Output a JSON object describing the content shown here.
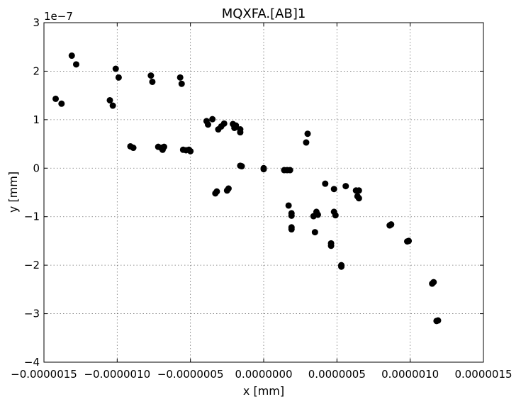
{
  "chart_data": {
    "type": "scatter",
    "title": "MQXFA.[AB]1",
    "xlabel": "x [mm]",
    "ylabel": "y [mm]",
    "y_offset_label": "1e−7",
    "xlim": [
      -1.5e-06,
      1.5e-06
    ],
    "ylim": [
      -4,
      3
    ],
    "x_ticks": [
      -1.5e-06,
      -1e-06,
      -5e-07,
      0.0,
      5e-07,
      1e-06,
      1.5e-06
    ],
    "x_tick_labels": [
      "−0.0000015",
      "−0.0000010",
      "−0.0000005",
      "0.0000000",
      "0.0000005",
      "0.0000010",
      "0.0000015"
    ],
    "y_ticks": [
      -4,
      -3,
      -2,
      -1,
      0,
      1,
      2,
      3
    ],
    "y_tick_labels": [
      "−4",
      "−3",
      "−2",
      "−1",
      "0",
      "1",
      "2",
      "3"
    ],
    "grid": true,
    "marker_color": "#000000",
    "points": [
      {
        "x": -1.42e-06,
        "y": 1.43
      },
      {
        "x": -1.38e-06,
        "y": 1.33
      },
      {
        "x": -1.31e-06,
        "y": 2.32
      },
      {
        "x": -1.28e-06,
        "y": 2.14
      },
      {
        "x": -1.05e-06,
        "y": 1.4
      },
      {
        "x": -1.03e-06,
        "y": 1.29
      },
      {
        "x": -1.01e-06,
        "y": 2.05
      },
      {
        "x": -9.9e-07,
        "y": 1.87
      },
      {
        "x": -9.1e-07,
        "y": 0.45
      },
      {
        "x": -8.9e-07,
        "y": 0.42
      },
      {
        "x": -7.7e-07,
        "y": 1.91
      },
      {
        "x": -7.6e-07,
        "y": 1.78
      },
      {
        "x": -7.2e-07,
        "y": 0.44
      },
      {
        "x": -7e-07,
        "y": 0.42
      },
      {
        "x": -6.9e-07,
        "y": 0.38
      },
      {
        "x": -6.8e-07,
        "y": 0.44
      },
      {
        "x": -5.7e-07,
        "y": 1.87
      },
      {
        "x": -5.6e-07,
        "y": 1.74
      },
      {
        "x": -5.5e-07,
        "y": 0.38
      },
      {
        "x": -5.3e-07,
        "y": 0.37
      },
      {
        "x": -5.1e-07,
        "y": 0.38
      },
      {
        "x": -5e-07,
        "y": 0.35
      },
      {
        "x": -3.9e-07,
        "y": 0.97
      },
      {
        "x": -3.8e-07,
        "y": 0.9
      },
      {
        "x": -3.5e-07,
        "y": 1.01
      },
      {
        "x": -3.3e-07,
        "y": -0.52
      },
      {
        "x": -3.2e-07,
        "y": -0.48
      },
      {
        "x": -3.1e-07,
        "y": 0.8
      },
      {
        "x": -2.9e-07,
        "y": 0.86
      },
      {
        "x": -2.7e-07,
        "y": 0.92
      },
      {
        "x": -2.5e-07,
        "y": -0.46
      },
      {
        "x": -2.4e-07,
        "y": -0.42
      },
      {
        "x": -2.1e-07,
        "y": 0.91
      },
      {
        "x": -2e-07,
        "y": 0.83
      },
      {
        "x": -1.9e-07,
        "y": 0.88
      },
      {
        "x": -1.6e-07,
        "y": 0.8
      },
      {
        "x": -1.6e-07,
        "y": 0.74
      },
      {
        "x": -1.6e-07,
        "y": 0.05
      },
      {
        "x": -1.5e-07,
        "y": 0.04
      },
      {
        "x": 0.0,
        "y": 0.0
      },
      {
        "x": 0.0,
        "y": -0.02
      },
      {
        "x": 1.4e-07,
        "y": -0.04
      },
      {
        "x": 1.6e-07,
        "y": -0.04
      },
      {
        "x": 1.8e-07,
        "y": -0.04
      },
      {
        "x": 1.7e-07,
        "y": -0.77
      },
      {
        "x": 1.9e-07,
        "y": -0.93
      },
      {
        "x": 1.9e-07,
        "y": -0.98
      },
      {
        "x": 1.9e-07,
        "y": -1.22
      },
      {
        "x": 1.9e-07,
        "y": -1.26
      },
      {
        "x": 2.9e-07,
        "y": 0.53
      },
      {
        "x": 3e-07,
        "y": 0.71
      },
      {
        "x": 3.4e-07,
        "y": -0.99
      },
      {
        "x": 3.5e-07,
        "y": -1.32
      },
      {
        "x": 3.6e-07,
        "y": -0.9
      },
      {
        "x": 3.7e-07,
        "y": -0.96
      },
      {
        "x": 4.2e-07,
        "y": -0.32
      },
      {
        "x": 4.6e-07,
        "y": -1.55
      },
      {
        "x": 4.6e-07,
        "y": -1.6
      },
      {
        "x": 4.8e-07,
        "y": -0.43
      },
      {
        "x": 4.8e-07,
        "y": -0.9
      },
      {
        "x": 4.9e-07,
        "y": -0.97
      },
      {
        "x": 5.3e-07,
        "y": -2.0
      },
      {
        "x": 5.3e-07,
        "y": -2.03
      },
      {
        "x": 5.6e-07,
        "y": -0.37
      },
      {
        "x": 6.3e-07,
        "y": -0.46
      },
      {
        "x": 6.4e-07,
        "y": -0.58
      },
      {
        "x": 6.5e-07,
        "y": -0.62
      },
      {
        "x": 6.5e-07,
        "y": -0.46
      },
      {
        "x": 8.6e-07,
        "y": -1.18
      },
      {
        "x": 8.7e-07,
        "y": -1.16
      },
      {
        "x": 9.8e-07,
        "y": -1.51
      },
      {
        "x": 9.9e-07,
        "y": -1.5
      },
      {
        "x": 1.15e-06,
        "y": -2.38
      },
      {
        "x": 1.16e-06,
        "y": -2.35
      },
      {
        "x": 1.18e-06,
        "y": -3.15
      },
      {
        "x": 1.19e-06,
        "y": -3.14
      }
    ]
  }
}
